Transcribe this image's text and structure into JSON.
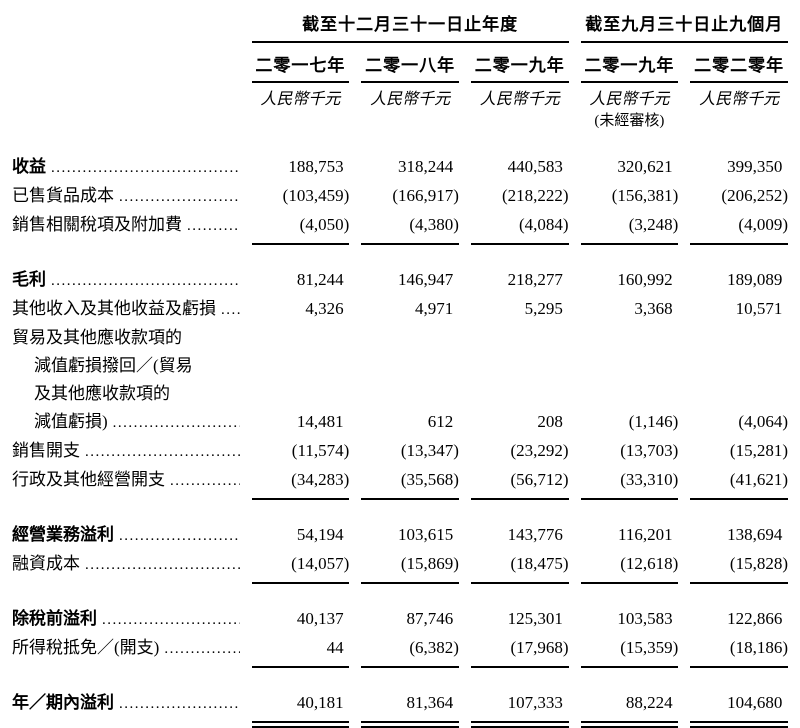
{
  "page": {
    "background": "#ffffff",
    "text_color": "#000000",
    "rule_color": "#000000"
  },
  "header": {
    "groups": [
      {
        "title": "截至十二月三十一日止年度",
        "span": 3
      },
      {
        "title": "截至九月三十日止九個月",
        "span": 2
      }
    ],
    "columns": [
      {
        "year": "二零一七年",
        "unit": "人民幣千元",
        "note": ""
      },
      {
        "year": "二零一八年",
        "unit": "人民幣千元",
        "note": ""
      },
      {
        "year": "二零一九年",
        "unit": "人民幣千元",
        "note": ""
      },
      {
        "year": "二零一九年",
        "unit": "人民幣千元",
        "note": "(未經審核)"
      },
      {
        "year": "二零二零年",
        "unit": "人民幣千元",
        "note": ""
      }
    ]
  },
  "table": {
    "rows": [
      {
        "label": "收益",
        "bold": true,
        "dots": true,
        "values": [
          "188,753",
          "318,244",
          "440,583",
          "320,621",
          "399,350"
        ]
      },
      {
        "label": "已售貨品成本",
        "dots": true,
        "values": [
          "(103,459)",
          "(166,917)",
          "(218,222)",
          "(156,381)",
          "(206,252)"
        ]
      },
      {
        "label": "銷售相關稅項及附加費",
        "dots": true,
        "rule": "single",
        "values": [
          "(4,050)",
          "(4,380)",
          "(4,084)",
          "(3,248)",
          "(4,009)"
        ]
      },
      {
        "spacer": true
      },
      {
        "label": "毛利",
        "bold": true,
        "dots": true,
        "values": [
          "81,244",
          "146,947",
          "218,277",
          "160,992",
          "189,089"
        ]
      },
      {
        "label": "其他收入及其他收益及虧損",
        "dots": true,
        "values": [
          "4,326",
          "4,971",
          "5,295",
          "3,368",
          "10,571"
        ]
      },
      {
        "label": "貿易及其他應收款項的"
      },
      {
        "label": "減值虧損撥回／(貿易",
        "indent": true
      },
      {
        "label": "及其他應收款項的",
        "indent": true
      },
      {
        "label": "減值虧損)",
        "indent": true,
        "dots": true,
        "values": [
          "14,481",
          "612",
          "208",
          "(1,146)",
          "(4,064)"
        ]
      },
      {
        "label": "銷售開支",
        "dots": true,
        "values": [
          "(11,574)",
          "(13,347)",
          "(23,292)",
          "(13,703)",
          "(15,281)"
        ]
      },
      {
        "label": "行政及其他經營開支",
        "dots": true,
        "rule": "single",
        "values": [
          "(34,283)",
          "(35,568)",
          "(56,712)",
          "(33,310)",
          "(41,621)"
        ]
      },
      {
        "spacer": true
      },
      {
        "label": "經營業務溢利",
        "bold": true,
        "dots": true,
        "values": [
          "54,194",
          "103,615",
          "143,776",
          "116,201",
          "138,694"
        ]
      },
      {
        "label": "融資成本",
        "dots": true,
        "rule": "single",
        "values": [
          "(14,057)",
          "(15,869)",
          "(18,475)",
          "(12,618)",
          "(15,828)"
        ]
      },
      {
        "spacer": true
      },
      {
        "label": "除稅前溢利",
        "bold": true,
        "dots": true,
        "values": [
          "40,137",
          "87,746",
          "125,301",
          "103,583",
          "122,866"
        ]
      },
      {
        "label": "所得稅抵免／(開支)",
        "dots": true,
        "rule": "single",
        "values": [
          "44",
          "(6,382)",
          "(17,968)",
          "(15,359)",
          "(18,186)"
        ]
      },
      {
        "spacer": true
      },
      {
        "label": "年／期內溢利",
        "bold": true,
        "dots": true,
        "rule": "double",
        "values": [
          "40,181",
          "81,364",
          "107,333",
          "88,224",
          "104,680"
        ]
      }
    ]
  }
}
